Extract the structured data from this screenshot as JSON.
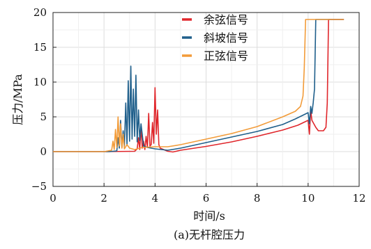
{
  "chart_data": {
    "type": "line",
    "xlabel": "时间/s",
    "ylabel": "压力/MPa",
    "caption": "(a)无杆腔压力",
    "xlim": [
      0,
      12
    ],
    "ylim": [
      -5,
      20
    ],
    "xticks": [
      0,
      2,
      4,
      6,
      8,
      10,
      12
    ],
    "yticks": [
      -5,
      0,
      5,
      10,
      15,
      20
    ],
    "xtick_labels": [
      "0",
      "2",
      "4",
      "6",
      "8",
      "10",
      "12"
    ],
    "ytick_labels": [
      "−5",
      "0",
      "5",
      "10",
      "15",
      "20"
    ],
    "grid": true,
    "legend_position": "top-center",
    "series": [
      {
        "name": "余弦信号",
        "color": "#e0262b",
        "points": [
          [
            0,
            0
          ],
          [
            2.0,
            0
          ],
          [
            3.2,
            0.05
          ],
          [
            3.3,
            0.4
          ],
          [
            3.35,
            2.0
          ],
          [
            3.4,
            0.3
          ],
          [
            3.45,
            3.5
          ],
          [
            3.5,
            0.5
          ],
          [
            3.55,
            1.5
          ],
          [
            3.6,
            0.3
          ],
          [
            3.65,
            2.2
          ],
          [
            3.7,
            0.6
          ],
          [
            3.75,
            5.5
          ],
          [
            3.8,
            0.8
          ],
          [
            3.85,
            1.0
          ],
          [
            3.9,
            4.2
          ],
          [
            3.95,
            1.2
          ],
          [
            4.0,
            9.2
          ],
          [
            4.05,
            2.5
          ],
          [
            4.1,
            6.0
          ],
          [
            4.15,
            1.0
          ],
          [
            4.2,
            0.5
          ],
          [
            4.5,
            0.05
          ],
          [
            4.7,
            -0.05
          ],
          [
            5.0,
            0.2
          ],
          [
            6.0,
            0.75
          ],
          [
            7.0,
            1.4
          ],
          [
            8.0,
            2.2
          ],
          [
            9.0,
            3.1
          ],
          [
            9.6,
            3.8
          ],
          [
            10.0,
            4.5
          ],
          [
            10.05,
            2.5
          ],
          [
            10.1,
            5.9
          ],
          [
            10.15,
            4.5
          ],
          [
            10.3,
            3.5
          ],
          [
            10.4,
            3.0
          ],
          [
            10.6,
            3.0
          ],
          [
            10.7,
            3.5
          ],
          [
            10.75,
            7.0
          ],
          [
            10.8,
            19.0
          ],
          [
            11.4,
            19.0
          ]
        ]
      },
      {
        "name": "斜坡信号",
        "color": "#1f5f8b",
        "points": [
          [
            0,
            0
          ],
          [
            2.2,
            0
          ],
          [
            2.5,
            0.1
          ],
          [
            2.55,
            2.0
          ],
          [
            2.6,
            0.5
          ],
          [
            2.65,
            4.5
          ],
          [
            2.7,
            0.6
          ],
          [
            2.75,
            3.0
          ],
          [
            2.8,
            0.8
          ],
          [
            2.85,
            7.0
          ],
          [
            2.9,
            1.0
          ],
          [
            2.95,
            10.2
          ],
          [
            3.0,
            1.5
          ],
          [
            3.05,
            12.3
          ],
          [
            3.1,
            1.8
          ],
          [
            3.15,
            9.0
          ],
          [
            3.2,
            2.2
          ],
          [
            3.25,
            11.0
          ],
          [
            3.3,
            1.4
          ],
          [
            3.35,
            6.0
          ],
          [
            3.4,
            1.6
          ],
          [
            3.45,
            4.0
          ],
          [
            3.55,
            0.8
          ],
          [
            3.7,
            0.6
          ],
          [
            4.0,
            0.4
          ],
          [
            4.5,
            0.2
          ],
          [
            5.0,
            0.5
          ],
          [
            6.0,
            1.3
          ],
          [
            7.0,
            2.1
          ],
          [
            8.0,
            2.9
          ],
          [
            9.0,
            3.9
          ],
          [
            9.5,
            4.7
          ],
          [
            10.0,
            5.6
          ],
          [
            10.05,
            4.0
          ],
          [
            10.1,
            6.5
          ],
          [
            10.15,
            5.5
          ],
          [
            10.2,
            7.0
          ],
          [
            10.25,
            9.0
          ],
          [
            10.3,
            19.0
          ],
          [
            11.4,
            19.0
          ]
        ]
      },
      {
        "name": "正弦信号",
        "color": "#f29b38",
        "points": [
          [
            0,
            0
          ],
          [
            2.0,
            0
          ],
          [
            2.3,
            0.2
          ],
          [
            2.35,
            1.5
          ],
          [
            2.4,
            0.3
          ],
          [
            2.45,
            3.2
          ],
          [
            2.5,
            0.6
          ],
          [
            2.55,
            5.0
          ],
          [
            2.6,
            0.8
          ],
          [
            2.65,
            4.0
          ],
          [
            2.7,
            0.5
          ],
          [
            2.75,
            2.5
          ],
          [
            2.8,
            0.4
          ],
          [
            2.9,
            1.0
          ],
          [
            3.0,
            0.5
          ],
          [
            3.2,
            0.3
          ],
          [
            3.5,
            0.6
          ],
          [
            4.0,
            0.7
          ],
          [
            4.5,
            0.7
          ],
          [
            5.0,
            1.0
          ],
          [
            6.0,
            1.8
          ],
          [
            7.0,
            2.6
          ],
          [
            8.0,
            3.6
          ],
          [
            9.0,
            5.0
          ],
          [
            9.5,
            5.8
          ],
          [
            9.7,
            6.5
          ],
          [
            9.8,
            8.0
          ],
          [
            9.85,
            12.0
          ],
          [
            9.9,
            19.0
          ],
          [
            11.4,
            19.0
          ]
        ]
      }
    ]
  }
}
